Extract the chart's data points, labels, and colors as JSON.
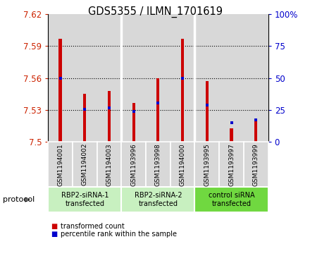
{
  "title": "GDS5355 / ILMN_1701619",
  "samples": [
    "GSM1194001",
    "GSM1194002",
    "GSM1194003",
    "GSM1193996",
    "GSM1193998",
    "GSM1194000",
    "GSM1193995",
    "GSM1193997",
    "GSM1193999"
  ],
  "red_values": [
    7.597,
    7.545,
    7.548,
    7.537,
    7.56,
    7.597,
    7.557,
    7.513,
    7.522
  ],
  "blue_values": [
    7.56,
    7.531,
    7.532,
    7.529,
    7.537,
    7.56,
    7.535,
    7.518,
    7.521
  ],
  "ymin": 7.5,
  "ymax": 7.62,
  "yticks": [
    7.5,
    7.53,
    7.56,
    7.59,
    7.62
  ],
  "ytick_labels": [
    "7.5",
    "7.53",
    "7.56",
    "7.59",
    "7.62"
  ],
  "y2ticks": [
    0,
    25,
    50,
    75,
    100
  ],
  "y2tick_labels": [
    "0",
    "25",
    "50",
    "75",
    "100%"
  ],
  "groups": [
    {
      "label": "RBP2-siRNA-1\ntransfected",
      "start": 0,
      "end": 3,
      "color": "#c8f0c0"
    },
    {
      "label": "RBP2-siRNA-2\ntransfected",
      "start": 3,
      "end": 6,
      "color": "#c8f0c0"
    },
    {
      "label": "control siRNA\ntransfected",
      "start": 6,
      "end": 9,
      "color": "#70d840"
    }
  ],
  "bar_color": "#cc0000",
  "dot_color": "#0000cc",
  "sample_bg": "#d8d8d8",
  "plot_bg": "#ffffff"
}
